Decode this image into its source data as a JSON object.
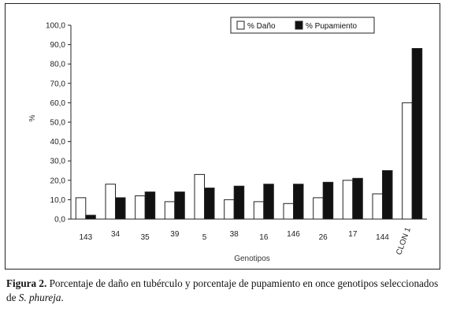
{
  "chart_data": {
    "type": "bar",
    "ylabel": "%",
    "xlabel": "Genotipos",
    "ylim": [
      0,
      100
    ],
    "yticks": [
      "0,0",
      "10,0",
      "20,0",
      "30,0",
      "40,0",
      "50,0",
      "60,0",
      "70,0",
      "80,0",
      "90,0",
      "100,0"
    ],
    "categories": [
      "143",
      "34",
      "35",
      "39",
      "5",
      "38",
      "16",
      "146",
      "26",
      "17",
      "144",
      "CLON 1"
    ],
    "series": [
      {
        "name": "% Daño",
        "color": "#ffffff",
        "values": [
          11,
          18,
          12,
          9,
          23,
          10,
          9,
          8,
          11,
          20,
          13,
          60
        ]
      },
      {
        "name": "% Pupamiento",
        "color": "#111111",
        "values": [
          2,
          11,
          14,
          14,
          16,
          17,
          18,
          18,
          19,
          21,
          25,
          88
        ]
      }
    ],
    "legend_position": "top",
    "grid": false
  },
  "caption": {
    "label": "Figura 2.",
    "text_before": " Porcentaje de daño en tubérculo y porcentaje de pupamiento en once genotipos seleccionados de ",
    "species": "S. phureja",
    "text_after": "."
  }
}
